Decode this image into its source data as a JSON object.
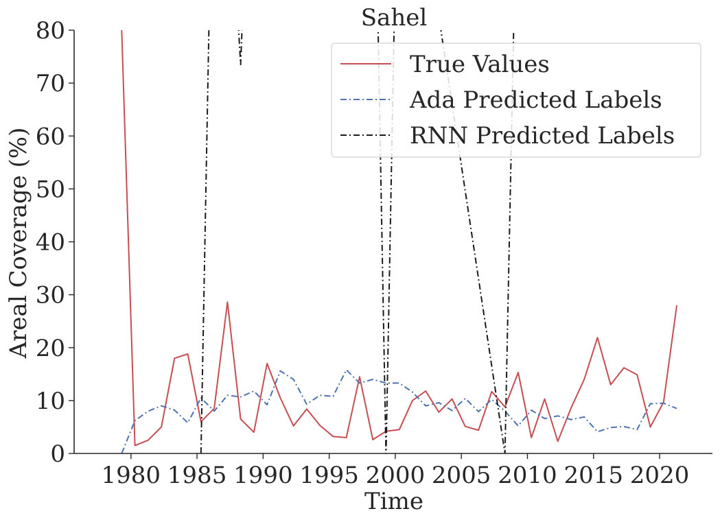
{
  "chart_data": {
    "type": "line",
    "title": "Sahel",
    "xlabel": "Time",
    "ylabel": "Areal Coverage (%)",
    "xlim": [
      1975.7,
      2024
    ],
    "ylim": [
      0,
      80
    ],
    "xticks": [
      1980,
      1985,
      1990,
      1995,
      2000,
      2005,
      2010,
      2015,
      2020
    ],
    "yticks": [
      0,
      10,
      20,
      30,
      40,
      50,
      60,
      70,
      80
    ],
    "grid": false,
    "legend_position": "top-right",
    "series": [
      {
        "name": "True Values",
        "color": "#c44e52",
        "style": "solid",
        "x": [
          1979.3,
          1980.3,
          1981.3,
          1982.3,
          1983.3,
          1984.3,
          1985.3,
          1986.3,
          1987.3,
          1988.3,
          1989.3,
          1990.3,
          1991.3,
          1992.3,
          1993.3,
          1994.3,
          1995.3,
          1996.3,
          1997.3,
          1998.3,
          1999.3,
          2000.3,
          2001.3,
          2002.3,
          2003.3,
          2004.3,
          2005.3,
          2006.3,
          2007.3,
          2008.3,
          2009.3,
          2010.3,
          2011.3,
          2012.3,
          2013.3,
          2014.3,
          2015.3,
          2016.3,
          2017.3,
          2018.3,
          2019.3,
          2020.3,
          2021.3
        ],
        "y": [
          80,
          1.5,
          2.5,
          5,
          18,
          18.8,
          6,
          8.5,
          28.6,
          6.5,
          4,
          17,
          10.5,
          5.2,
          8.4,
          5.3,
          3.2,
          3,
          14.5,
          2.6,
          4.2,
          4.5,
          10,
          11.8,
          7.8,
          10.3,
          5.1,
          4.4,
          11.7,
          8.8,
          15.3,
          3,
          10.3,
          2.3,
          8.6,
          14,
          21.9,
          13,
          16.2,
          14.9,
          5,
          9.7,
          28
        ]
      },
      {
        "name": "Ada Predicted Labels",
        "color": "#4c72b0",
        "style": "dashdot",
        "x": [
          1979.3,
          1980.3,
          1981.3,
          1982.3,
          1983.3,
          1984.3,
          1985.3,
          1986.3,
          1987.3,
          1988.3,
          1989.3,
          1990.3,
          1991.3,
          1992.3,
          1993.3,
          1994.3,
          1995.3,
          1996.3,
          1997.3,
          1998.3,
          1999.3,
          2000.3,
          2001.3,
          2002.3,
          2003.3,
          2004.3,
          2005.3,
          2006.3,
          2007.3,
          2008.3,
          2009.3,
          2010.3,
          2011.3,
          2012.3,
          2013.3,
          2014.3,
          2015.3,
          2016.3,
          2017.3,
          2018.3,
          2019.3,
          2020.3,
          2021.3
        ],
        "y": [
          0,
          6.2,
          8,
          9,
          8.2,
          5.8,
          10.5,
          8,
          11,
          10.7,
          11.8,
          9.2,
          15.6,
          14,
          9.3,
          11,
          10.8,
          15.8,
          13.3,
          14,
          13.3,
          13.3,
          11.6,
          9,
          9.6,
          8.1,
          10.4,
          7.9,
          10.2,
          8,
          5.2,
          8.2,
          6.6,
          7.1,
          6.4,
          6.9,
          4.1,
          4.9,
          5.1,
          4.5,
          9.4,
          9.5,
          8.5
        ]
      },
      {
        "name": "RNN Predicted Labels",
        "color": "#1a1a1a",
        "style": "dashdot",
        "x": [
          1985.3,
          1986.3,
          1987.3,
          1988.3,
          1989.3,
          1998.3,
          1999.3,
          2000.3,
          2008.3,
          2009.3
        ],
        "y": [
          0,
          134,
          116,
          73.5,
          136,
          134,
          -0.5,
          132,
          0,
          122
        ]
      }
    ]
  }
}
